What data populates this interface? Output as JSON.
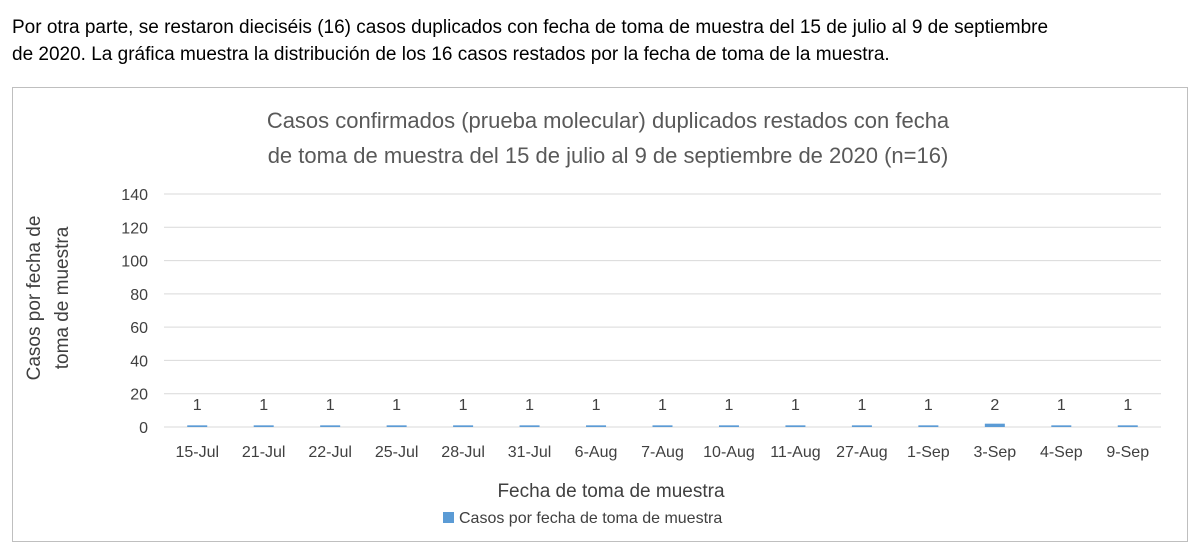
{
  "intro": {
    "line1": "Por otra parte, se restaron dieciséis (16) casos duplicados con fecha de toma de muestra del 15 de julio al 9 de septiembre",
    "line2": "de 2020. La gráfica muestra la distribución de los 16 casos restados por la fecha de toma de la muestra."
  },
  "colors": {
    "bar": "#5b9bd5",
    "grid": "#d9d9d9",
    "text": "#595959"
  },
  "chart_data": {
    "type": "bar",
    "title": "Casos confirmados (prueba molecular) duplicados restados con fecha de toma de muestra del 15 de julio al 9 de septiembre de 2020 (n=16)",
    "title_lines": [
      "Casos confirmados (prueba molecular) duplicados restados con fecha",
      "de toma de muestra del 15 de julio al 9 de septiembre de 2020 (n=16)"
    ],
    "categories": [
      "15-Jul",
      "21-Jul",
      "22-Jul",
      "25-Jul",
      "28-Jul",
      "31-Jul",
      "6-Aug",
      "7-Aug",
      "10-Aug",
      "11-Aug",
      "27-Aug",
      "1-Sep",
      "3-Sep",
      "4-Sep",
      "9-Sep"
    ],
    "series": [
      {
        "name": "Casos por fecha de toma de muestra",
        "values": [
          1,
          1,
          1,
          1,
          1,
          1,
          1,
          1,
          1,
          1,
          1,
          1,
          2,
          1,
          1
        ]
      }
    ],
    "xlabel": "Fecha de toma de muestra",
    "ylabel_lines": [
      "Casos por fecha de",
      "toma de muestra"
    ],
    "ylim": [
      0,
      140
    ],
    "yticks": [
      0,
      20,
      40,
      60,
      80,
      100,
      120,
      140
    ],
    "grid": true,
    "legend_position": "bottom"
  }
}
